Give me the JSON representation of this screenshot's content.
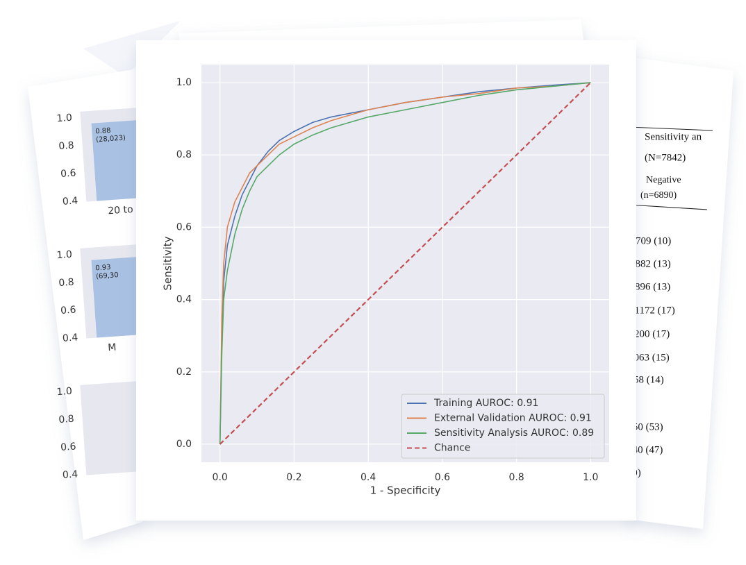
{
  "chart_data": {
    "type": "line",
    "xlabel": "1 - Specificity",
    "ylabel": "Sensitivity",
    "xlim": [
      -0.05,
      1.05
    ],
    "ylim": [
      -0.05,
      1.05
    ],
    "xticks": [
      {
        "value": 0,
        "label": "0.0"
      },
      0.2,
      0.4,
      0.6,
      0.8,
      {
        "value": 1,
        "label": "1.0"
      }
    ],
    "yticks": [
      {
        "value": 0,
        "label": "0.0"
      },
      0.2,
      0.4,
      0.6,
      0.8,
      {
        "value": 1,
        "label": "1.0"
      }
    ],
    "grid": true,
    "legend": "lower right",
    "series": [
      {
        "name": "Training AUROC: 0.91",
        "color": "#4c72b0",
        "style": "solid",
        "x": [
          0,
          0.005,
          0.01,
          0.02,
          0.04,
          0.06,
          0.08,
          0.1,
          0.13,
          0.16,
          0.2,
          0.25,
          0.3,
          0.4,
          0.5,
          0.6,
          0.7,
          0.8,
          0.9,
          1
        ],
        "values": [
          0,
          0.3,
          0.45,
          0.55,
          0.63,
          0.69,
          0.73,
          0.77,
          0.81,
          0.84,
          0.865,
          0.89,
          0.905,
          0.925,
          0.945,
          0.96,
          0.975,
          0.985,
          0.993,
          1
        ]
      },
      {
        "name": "External Validation AUROC: 0.91",
        "color": "#dd8452",
        "style": "solid",
        "x": [
          0,
          0.005,
          0.01,
          0.02,
          0.04,
          0.06,
          0.08,
          0.1,
          0.13,
          0.16,
          0.2,
          0.25,
          0.3,
          0.4,
          0.5,
          0.6,
          0.7,
          0.8,
          0.9,
          1
        ],
        "values": [
          0,
          0.35,
          0.5,
          0.6,
          0.67,
          0.71,
          0.75,
          0.77,
          0.8,
          0.83,
          0.85,
          0.875,
          0.895,
          0.925,
          0.945,
          0.96,
          0.97,
          0.985,
          0.99,
          1
        ]
      },
      {
        "name": "Sensitivity Analysis AUROC: 0.89",
        "color": "#55a868",
        "style": "solid",
        "x": [
          0,
          0.005,
          0.01,
          0.02,
          0.04,
          0.06,
          0.08,
          0.1,
          0.13,
          0.16,
          0.2,
          0.25,
          0.3,
          0.4,
          0.5,
          0.6,
          0.7,
          0.8,
          0.9,
          1
        ],
        "values": [
          0,
          0.25,
          0.4,
          0.48,
          0.58,
          0.65,
          0.7,
          0.74,
          0.77,
          0.8,
          0.83,
          0.855,
          0.875,
          0.905,
          0.925,
          0.945,
          0.965,
          0.98,
          0.99,
          1
        ]
      },
      {
        "name": "Chance",
        "color": "#c44e52",
        "style": "dashed",
        "x": [
          0,
          1
        ],
        "values": [
          0,
          1
        ]
      }
    ]
  },
  "background_left": {
    "panels": [
      {
        "ticks": [
          "1.0",
          "0.8",
          "0.6",
          "0.4"
        ],
        "bar_value": "0.88",
        "bar_count": "(28,023)",
        "category": "20 to"
      },
      {
        "ticks": [
          "1.0",
          "0.8",
          "0.6",
          "0.4"
        ],
        "bar_value": "0.93",
        "bar_count": "(69,30",
        "category": "M"
      },
      {
        "ticks": [
          "1.0",
          "0.8",
          "0.6",
          "0.4"
        ]
      }
    ]
  },
  "background_right": {
    "header": [
      "Sensitivity an",
      "(N=7842)",
      "Negative",
      "(n=6890)"
    ],
    "rows": [
      "709 (10)",
      "882 (13)",
      "896 (13)",
      "1172 (17)",
      "200 (17)",
      "063 (15)",
      "58 (14)",
      "50 (53)",
      "40 (47)",
      "0)"
    ]
  }
}
